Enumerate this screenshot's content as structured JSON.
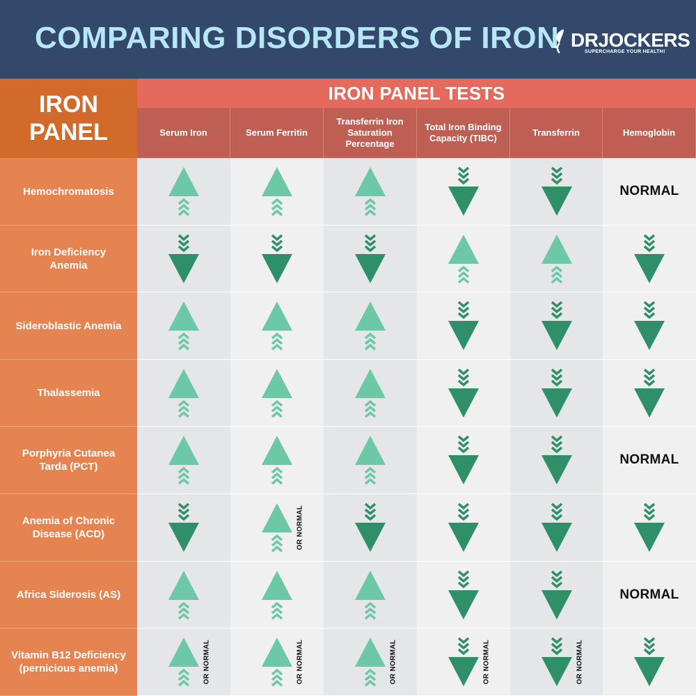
{
  "title": "COMPARING DISORDERS OF IRON",
  "logo": {
    "name": "DRJOCKERS",
    "tagline": "SUPERCHARGE YOUR HEALTH!",
    "icon": "leaf-icon"
  },
  "corner_label": {
    "line1": "IRON",
    "line2": "PANEL"
  },
  "tests_header": "IRON PANEL TESTS",
  "colors": {
    "up": "#6cc8a6",
    "down": "#2f8f68",
    "header_bg": "#33496c",
    "title": "#b7e7f5"
  },
  "columns": [
    "Serum Iron",
    "Serum Ferritin",
    "Transferrin Iron Saturation Percentage",
    "Total Iron Binding Capacity (TIBC)",
    "Transferrin",
    "Hemoglobin"
  ],
  "rows": [
    {
      "label": "Hemochromatosis",
      "values": [
        "up",
        "up",
        "up",
        "down",
        "down",
        "normal"
      ],
      "or_normal": [
        false,
        false,
        false,
        false,
        false,
        false
      ]
    },
    {
      "label": "Iron Deficiency Anemia",
      "values": [
        "down",
        "down",
        "down",
        "up",
        "up",
        "down"
      ],
      "or_normal": [
        false,
        false,
        false,
        false,
        false,
        false
      ]
    },
    {
      "label": "Sideroblastic Anemia",
      "values": [
        "up",
        "up",
        "up",
        "down",
        "down",
        "down"
      ],
      "or_normal": [
        false,
        false,
        false,
        false,
        false,
        false
      ]
    },
    {
      "label": "Thalassemia",
      "values": [
        "up",
        "up",
        "up",
        "down",
        "down",
        "down"
      ],
      "or_normal": [
        false,
        false,
        false,
        false,
        false,
        false
      ]
    },
    {
      "label": "Porphyria Cutanea Tarda (PCT)",
      "values": [
        "up",
        "up",
        "up",
        "down",
        "down",
        "normal"
      ],
      "or_normal": [
        false,
        false,
        false,
        false,
        false,
        false
      ]
    },
    {
      "label": "Anemia of Chronic Disease (ACD)",
      "values": [
        "down",
        "up",
        "down",
        "down",
        "down",
        "down"
      ],
      "or_normal": [
        false,
        true,
        false,
        false,
        false,
        false
      ]
    },
    {
      "label": "Africa Siderosis (AS)",
      "values": [
        "up",
        "up",
        "up",
        "down",
        "down",
        "normal"
      ],
      "or_normal": [
        false,
        false,
        false,
        false,
        false,
        false
      ]
    },
    {
      "label": "Vitamin B12 Deficiency (pernicious anemia)",
      "values": [
        "up",
        "up",
        "up",
        "down",
        "down",
        "down"
      ],
      "or_normal": [
        true,
        true,
        true,
        true,
        true,
        false
      ]
    }
  ],
  "normal_label": "NORMAL",
  "or_normal_label": "OR NORMAL"
}
